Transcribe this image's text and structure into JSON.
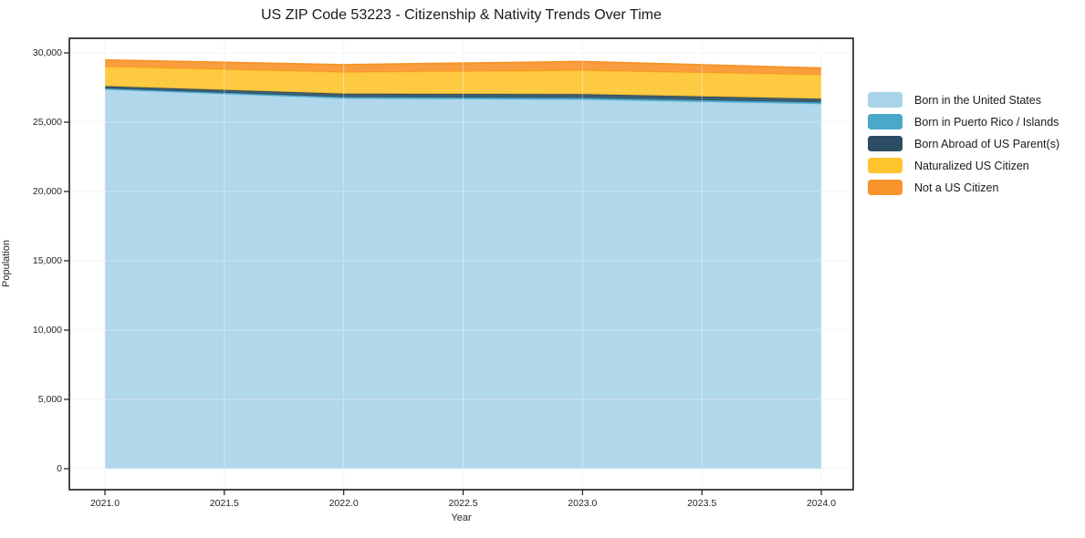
{
  "title": "US ZIP Code 53223 - Citizenship & Nativity Trends Over Time",
  "chart_data": {
    "type": "area",
    "stacked": true,
    "title": "US ZIP Code 53223 - Citizenship & Nativity Trends Over Time",
    "xlabel": "Year",
    "ylabel": "Population",
    "x": [
      2021,
      2022,
      2023,
      2024
    ],
    "series": [
      {
        "name": "Born in the United States",
        "color": "#A8D3E9",
        "values": [
          27350,
          26700,
          26620,
          26300
        ]
      },
      {
        "name": "Born in Puerto Rico / Islands",
        "color": "#4AA8C8",
        "values": [
          80,
          110,
          130,
          130
        ]
      },
      {
        "name": "Born Abroad of US Parent(s)",
        "color": "#2C4D63",
        "values": [
          170,
          250,
          270,
          260
        ]
      },
      {
        "name": "Naturalized US Citizen",
        "color": "#FDC42E",
        "values": [
          1400,
          1530,
          1700,
          1720
        ]
      },
      {
        "name": "Not a US Citizen",
        "color": "#F79429",
        "values": [
          480,
          550,
          650,
          490
        ]
      }
    ],
    "x_ticks": {
      "values": [
        2021.0,
        2021.5,
        2022.0,
        2022.5,
        2023.0,
        2023.5,
        2024.0
      ],
      "labels": [
        "2021.0",
        "2021.5",
        "2022.0",
        "2022.5",
        "2023.0",
        "2023.5",
        "2024.0"
      ]
    },
    "y_ticks": {
      "values": [
        0,
        5000,
        10000,
        15000,
        20000,
        25000,
        30000
      ],
      "labels": [
        "0",
        "5,000",
        "10,000",
        "15,000",
        "20,000",
        "25,000",
        "30,000"
      ]
    },
    "ylim": [
      0,
      30000
    ],
    "xlim": [
      2021,
      2024
    ],
    "grid": true,
    "legend_position": "outside-right"
  }
}
